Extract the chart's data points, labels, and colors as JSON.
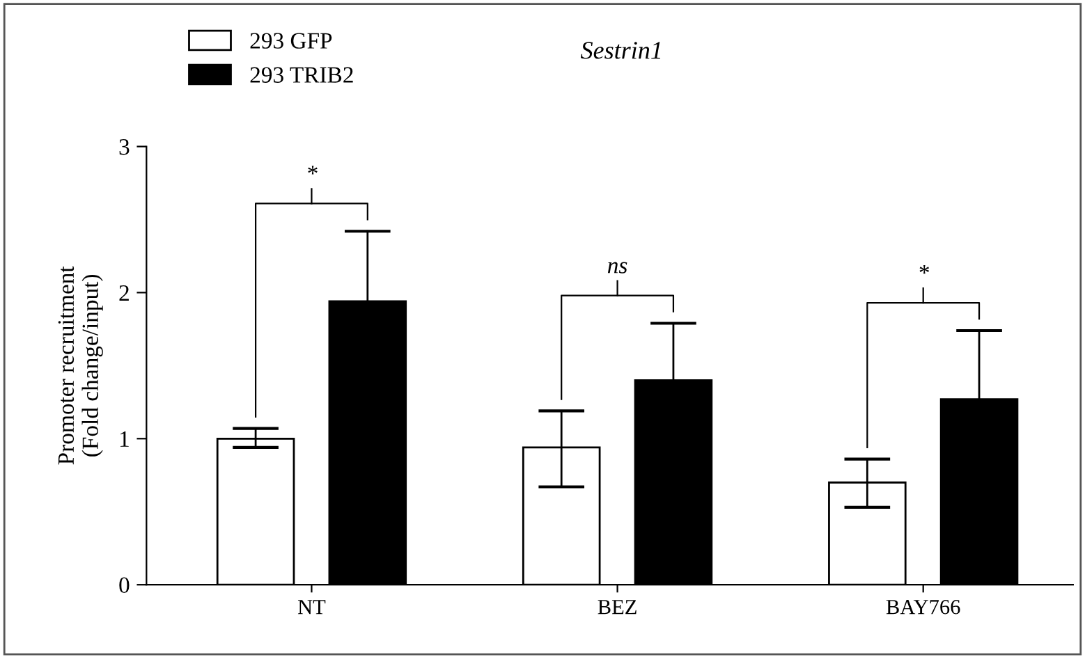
{
  "chart_data": {
    "type": "bar",
    "title": "Sestrin1",
    "ylabel": "Promoter recruitment\n(Fold change/input)",
    "categories": [
      "NT",
      "BEZ",
      "BAY766"
    ],
    "series": [
      {
        "name": "293 GFP",
        "color": "#ffffff",
        "values": [
          1.0,
          0.94,
          0.7
        ],
        "errors": [
          [
            0.94,
            1.07
          ],
          [
            0.67,
            1.19
          ],
          [
            0.53,
            0.86
          ]
        ]
      },
      {
        "name": "293 TRIB2",
        "color": "#000000",
        "values": [
          1.94,
          1.4,
          1.27
        ],
        "errors": [
          [
            1.94,
            2.42
          ],
          [
            1.4,
            1.79
          ],
          [
            1.27,
            1.74
          ]
        ]
      }
    ],
    "annotations": [
      "*",
      "ns",
      "*"
    ],
    "ylim": [
      0,
      3
    ],
    "yticks": [
      0,
      1,
      2,
      3
    ],
    "grid": false,
    "legend": "top left"
  }
}
